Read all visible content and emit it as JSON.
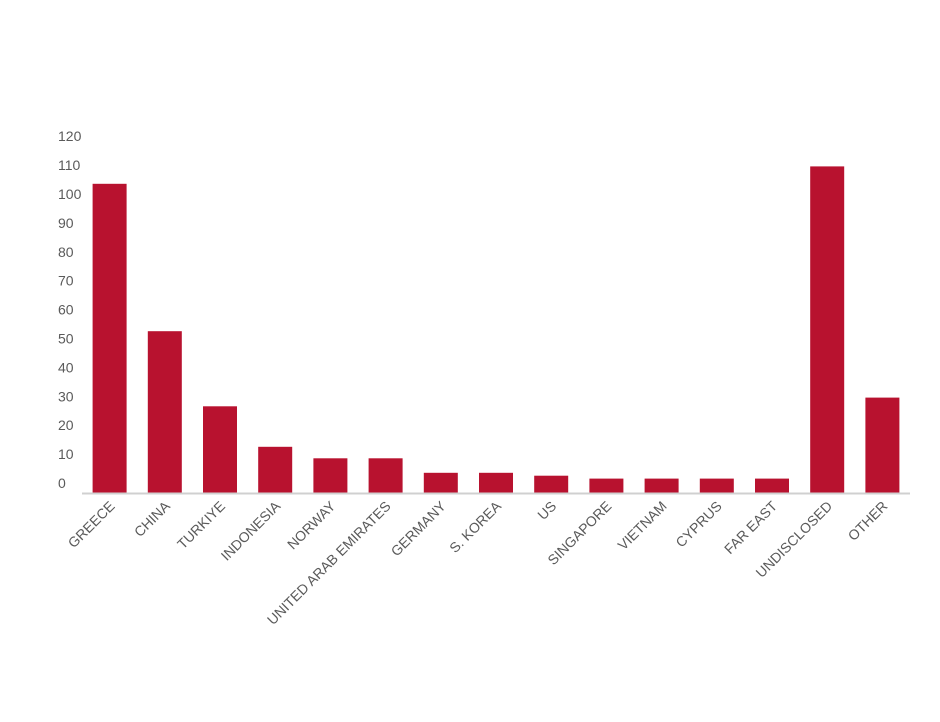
{
  "chart_data": {
    "type": "bar",
    "title": "",
    "xlabel": "",
    "ylabel": "",
    "ylim": [
      0,
      120
    ],
    "yticks": [
      0,
      10,
      20,
      30,
      40,
      50,
      60,
      70,
      80,
      90,
      100,
      110,
      120
    ],
    "grid": false,
    "legend": "none",
    "categories": [
      "GREECE",
      "CHINA",
      "TURKIYE",
      "INDONESIA",
      "NORWAY",
      "UNITED ARAB EMIRATES",
      "GERMANY",
      "S. KOREA",
      "US",
      "SINGAPORE",
      "VIETNAM",
      "CYPRUS",
      "FAR EAST",
      "UNDISCLOSED",
      "OTHER"
    ],
    "values": [
      107,
      56,
      30,
      16,
      12,
      12,
      7,
      7,
      6,
      5,
      5,
      5,
      5,
      113,
      33
    ],
    "colors": {
      "bar": "#b8122f",
      "axis": "#d0d0d0",
      "tick_text": "#5a5a5a"
    }
  }
}
